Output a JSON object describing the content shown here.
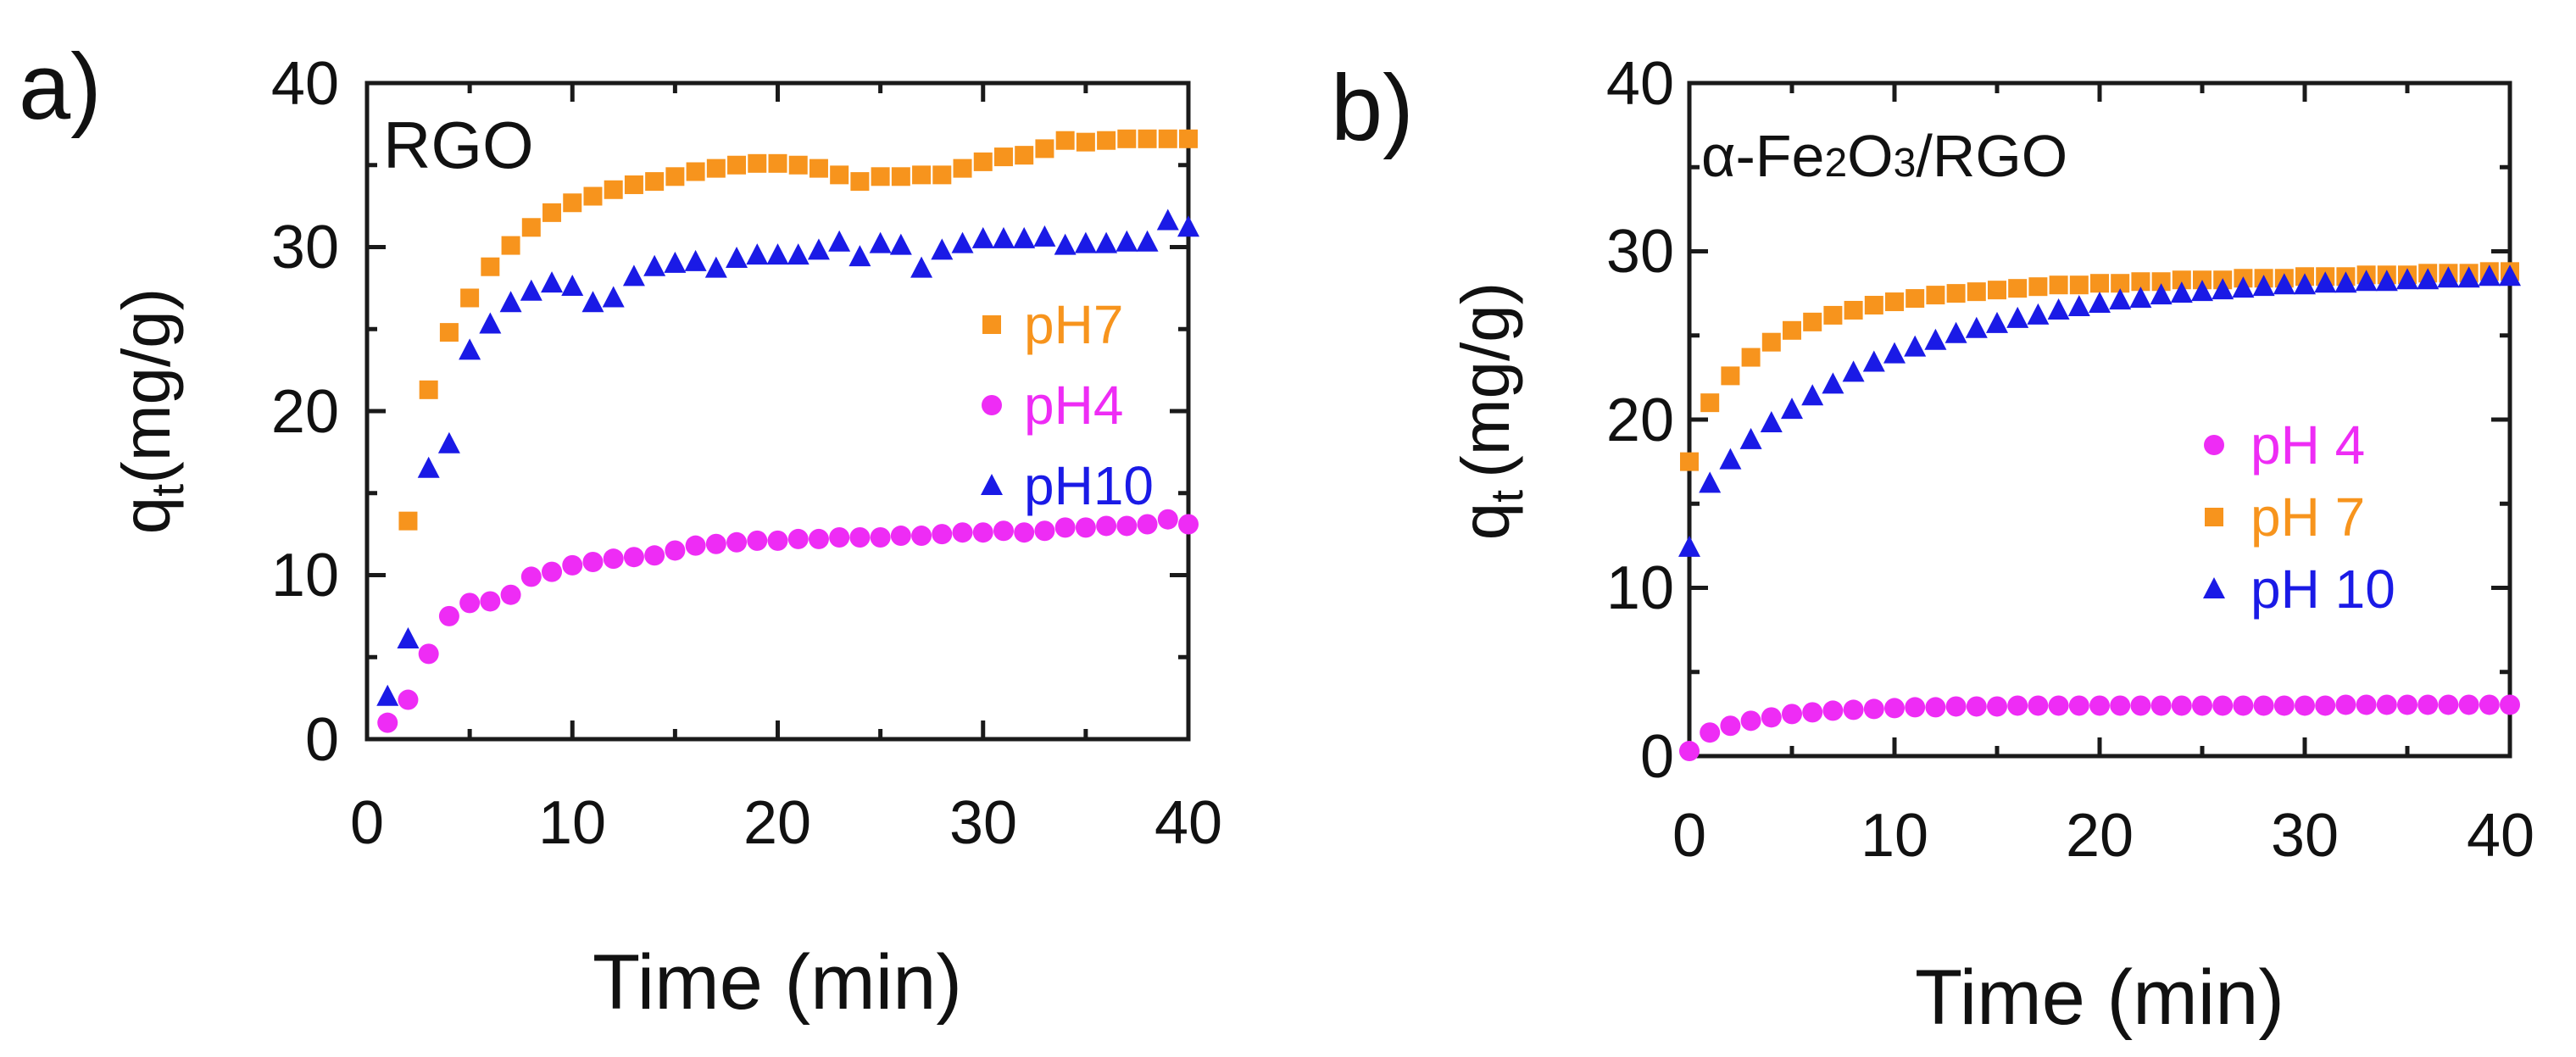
{
  "chart_data": [
    {
      "type": "scatter",
      "panel_label": "a)",
      "inset_title": "RGO",
      "xlabel": "Time (min)",
      "ylabel_main": "q",
      "ylabel_sub": "t",
      "ylabel_unit": "(mg/g)",
      "xlim": [
        0,
        40
      ],
      "ylim": [
        0,
        40
      ],
      "xticks": [
        "0",
        "10",
        "20",
        "30",
        "40"
      ],
      "yticks": [
        "0",
        "10",
        "20",
        "30",
        "40"
      ],
      "grid": false,
      "legend": {
        "position": "center-right",
        "order": [
          "pH7",
          "pH4",
          "pH10"
        ]
      },
      "series": [
        {
          "name": "pH7",
          "marker": "square",
          "color": "#F7941D",
          "x": [
            2,
            3,
            4,
            5,
            6,
            7,
            8,
            9,
            10,
            11,
            12,
            13,
            14,
            15,
            16,
            17,
            18,
            19,
            20,
            21,
            22,
            23,
            24,
            25,
            26,
            27,
            28,
            29,
            30,
            31,
            32,
            33,
            34,
            35,
            36,
            37,
            38,
            39,
            40
          ],
          "y": [
            13.3,
            21.3,
            24.8,
            26.9,
            28.8,
            30.1,
            31.2,
            32.1,
            32.7,
            33.1,
            33.5,
            33.8,
            34.0,
            34.3,
            34.6,
            34.8,
            35.0,
            35.1,
            35.1,
            35.0,
            34.8,
            34.4,
            34.0,
            34.3,
            34.3,
            34.4,
            34.4,
            34.8,
            35.2,
            35.5,
            35.6,
            36.0,
            36.5,
            36.4,
            36.5,
            36.6,
            36.6,
            36.6,
            36.6
          ]
        },
        {
          "name": "pH4",
          "marker": "circle",
          "color": "#EE2CF5",
          "x": [
            1,
            2,
            3,
            4,
            5,
            6,
            7,
            8,
            9,
            10,
            11,
            12,
            13,
            14,
            15,
            16,
            17,
            18,
            19,
            20,
            21,
            22,
            23,
            24,
            25,
            26,
            27,
            28,
            29,
            30,
            31,
            32,
            33,
            34,
            35,
            36,
            37,
            38,
            39,
            40
          ],
          "y": [
            1.0,
            2.4,
            5.2,
            7.5,
            8.3,
            8.4,
            8.8,
            9.9,
            10.2,
            10.6,
            10.8,
            11.0,
            11.1,
            11.2,
            11.5,
            11.8,
            11.9,
            12.0,
            12.1,
            12.1,
            12.2,
            12.2,
            12.3,
            12.3,
            12.3,
            12.4,
            12.4,
            12.5,
            12.6,
            12.6,
            12.7,
            12.6,
            12.7,
            12.9,
            12.9,
            13.0,
            13.0,
            13.1,
            13.4,
            13.1
          ]
        },
        {
          "name": "pH10",
          "marker": "triangle",
          "color": "#1A1AE6",
          "x": [
            1,
            2,
            3,
            4,
            5,
            6,
            7,
            8,
            9,
            10,
            11,
            12,
            13,
            14,
            15,
            16,
            17,
            18,
            19,
            20,
            21,
            22,
            23,
            24,
            25,
            26,
            27,
            28,
            29,
            30,
            31,
            32,
            33,
            34,
            35,
            36,
            37,
            38,
            39,
            40
          ],
          "y": [
            2.6,
            6.1,
            16.5,
            18.0,
            23.7,
            25.3,
            26.6,
            27.3,
            27.8,
            27.6,
            26.6,
            26.9,
            28.2,
            28.8,
            29.0,
            29.1,
            28.7,
            29.3,
            29.5,
            29.5,
            29.5,
            29.8,
            30.3,
            29.4,
            30.2,
            30.1,
            28.7,
            29.8,
            30.2,
            30.5,
            30.5,
            30.5,
            30.6,
            30.1,
            30.2,
            30.2,
            30.3,
            30.3,
            31.6,
            31.2
          ]
        }
      ]
    },
    {
      "type": "scatter",
      "panel_label": "b)",
      "inset_title": "α-Fe2O3/RGO",
      "inset_title_parts": {
        "alpha": "α",
        "fe": "-Fe",
        "sub1": "2",
        "o": "O",
        "sub2": "3",
        "rest": "/RGO"
      },
      "xlabel": "Time (min)",
      "ylabel_main": "q",
      "ylabel_sub": "t",
      "ylabel_unit": "(mg/g)",
      "xlim": [
        0,
        40
      ],
      "ylim": [
        0,
        40
      ],
      "xticks": [
        "0",
        "10",
        "20",
        "30",
        "40"
      ],
      "yticks": [
        "0",
        "10",
        "20",
        "30",
        "40"
      ],
      "grid": false,
      "legend": {
        "position": "center-right",
        "order": [
          "pH 4",
          "pH 7",
          "pH 10"
        ]
      },
      "series": [
        {
          "name": "pH 4",
          "marker": "circle",
          "color": "#EE2CF5",
          "x": [
            0,
            1,
            2,
            3,
            4,
            5,
            6,
            7,
            8,
            9,
            10,
            11,
            12,
            13,
            14,
            15,
            16,
            17,
            18,
            19,
            20,
            21,
            22,
            23,
            24,
            25,
            26,
            27,
            28,
            29,
            30,
            31,
            32,
            33,
            34,
            35,
            36,
            37,
            38,
            39,
            40
          ],
          "y": [
            0.3,
            1.4,
            1.8,
            2.1,
            2.3,
            2.5,
            2.6,
            2.7,
            2.75,
            2.8,
            2.85,
            2.9,
            2.9,
            2.95,
            2.95,
            2.95,
            3.0,
            3.0,
            3.0,
            3.0,
            3.0,
            3.0,
            3.0,
            3.0,
            3.0,
            3.0,
            3.0,
            3.0,
            3.0,
            3.0,
            3.0,
            3.0,
            3.05,
            3.05,
            3.05,
            3.05,
            3.05,
            3.05,
            3.05,
            3.05,
            3.05
          ]
        },
        {
          "name": "pH 7",
          "marker": "square",
          "color": "#F7941D",
          "x": [
            0,
            1,
            2,
            3,
            4,
            5,
            6,
            7,
            8,
            9,
            10,
            11,
            12,
            13,
            14,
            15,
            16,
            17,
            18,
            19,
            20,
            21,
            22,
            23,
            24,
            25,
            26,
            27,
            28,
            29,
            30,
            31,
            32,
            33,
            34,
            35,
            36,
            37,
            38,
            39,
            40
          ],
          "y": [
            17.5,
            21.0,
            22.6,
            23.7,
            24.6,
            25.3,
            25.8,
            26.2,
            26.5,
            26.8,
            27.0,
            27.2,
            27.4,
            27.5,
            27.6,
            27.7,
            27.8,
            27.9,
            28.0,
            28.0,
            28.1,
            28.1,
            28.2,
            28.2,
            28.3,
            28.3,
            28.3,
            28.4,
            28.4,
            28.4,
            28.5,
            28.5,
            28.5,
            28.6,
            28.6,
            28.6,
            28.7,
            28.7,
            28.7,
            28.8,
            28.8
          ]
        },
        {
          "name": "pH 10",
          "marker": "triangle",
          "color": "#1A1AE6",
          "x": [
            0,
            1,
            2,
            3,
            4,
            5,
            6,
            7,
            8,
            9,
            10,
            11,
            12,
            13,
            14,
            15,
            16,
            17,
            18,
            19,
            20,
            21,
            22,
            23,
            24,
            25,
            26,
            27,
            28,
            29,
            30,
            31,
            32,
            33,
            34,
            35,
            36,
            37,
            38,
            39,
            40
          ],
          "y": [
            12.4,
            16.2,
            17.6,
            18.8,
            19.8,
            20.6,
            21.4,
            22.1,
            22.8,
            23.4,
            23.9,
            24.3,
            24.7,
            25.1,
            25.4,
            25.7,
            26.0,
            26.2,
            26.5,
            26.7,
            26.9,
            27.1,
            27.2,
            27.4,
            27.5,
            27.6,
            27.7,
            27.8,
            27.9,
            28.0,
            28.0,
            28.1,
            28.1,
            28.2,
            28.2,
            28.3,
            28.3,
            28.4,
            28.4,
            28.5,
            28.5
          ]
        }
      ]
    }
  ]
}
